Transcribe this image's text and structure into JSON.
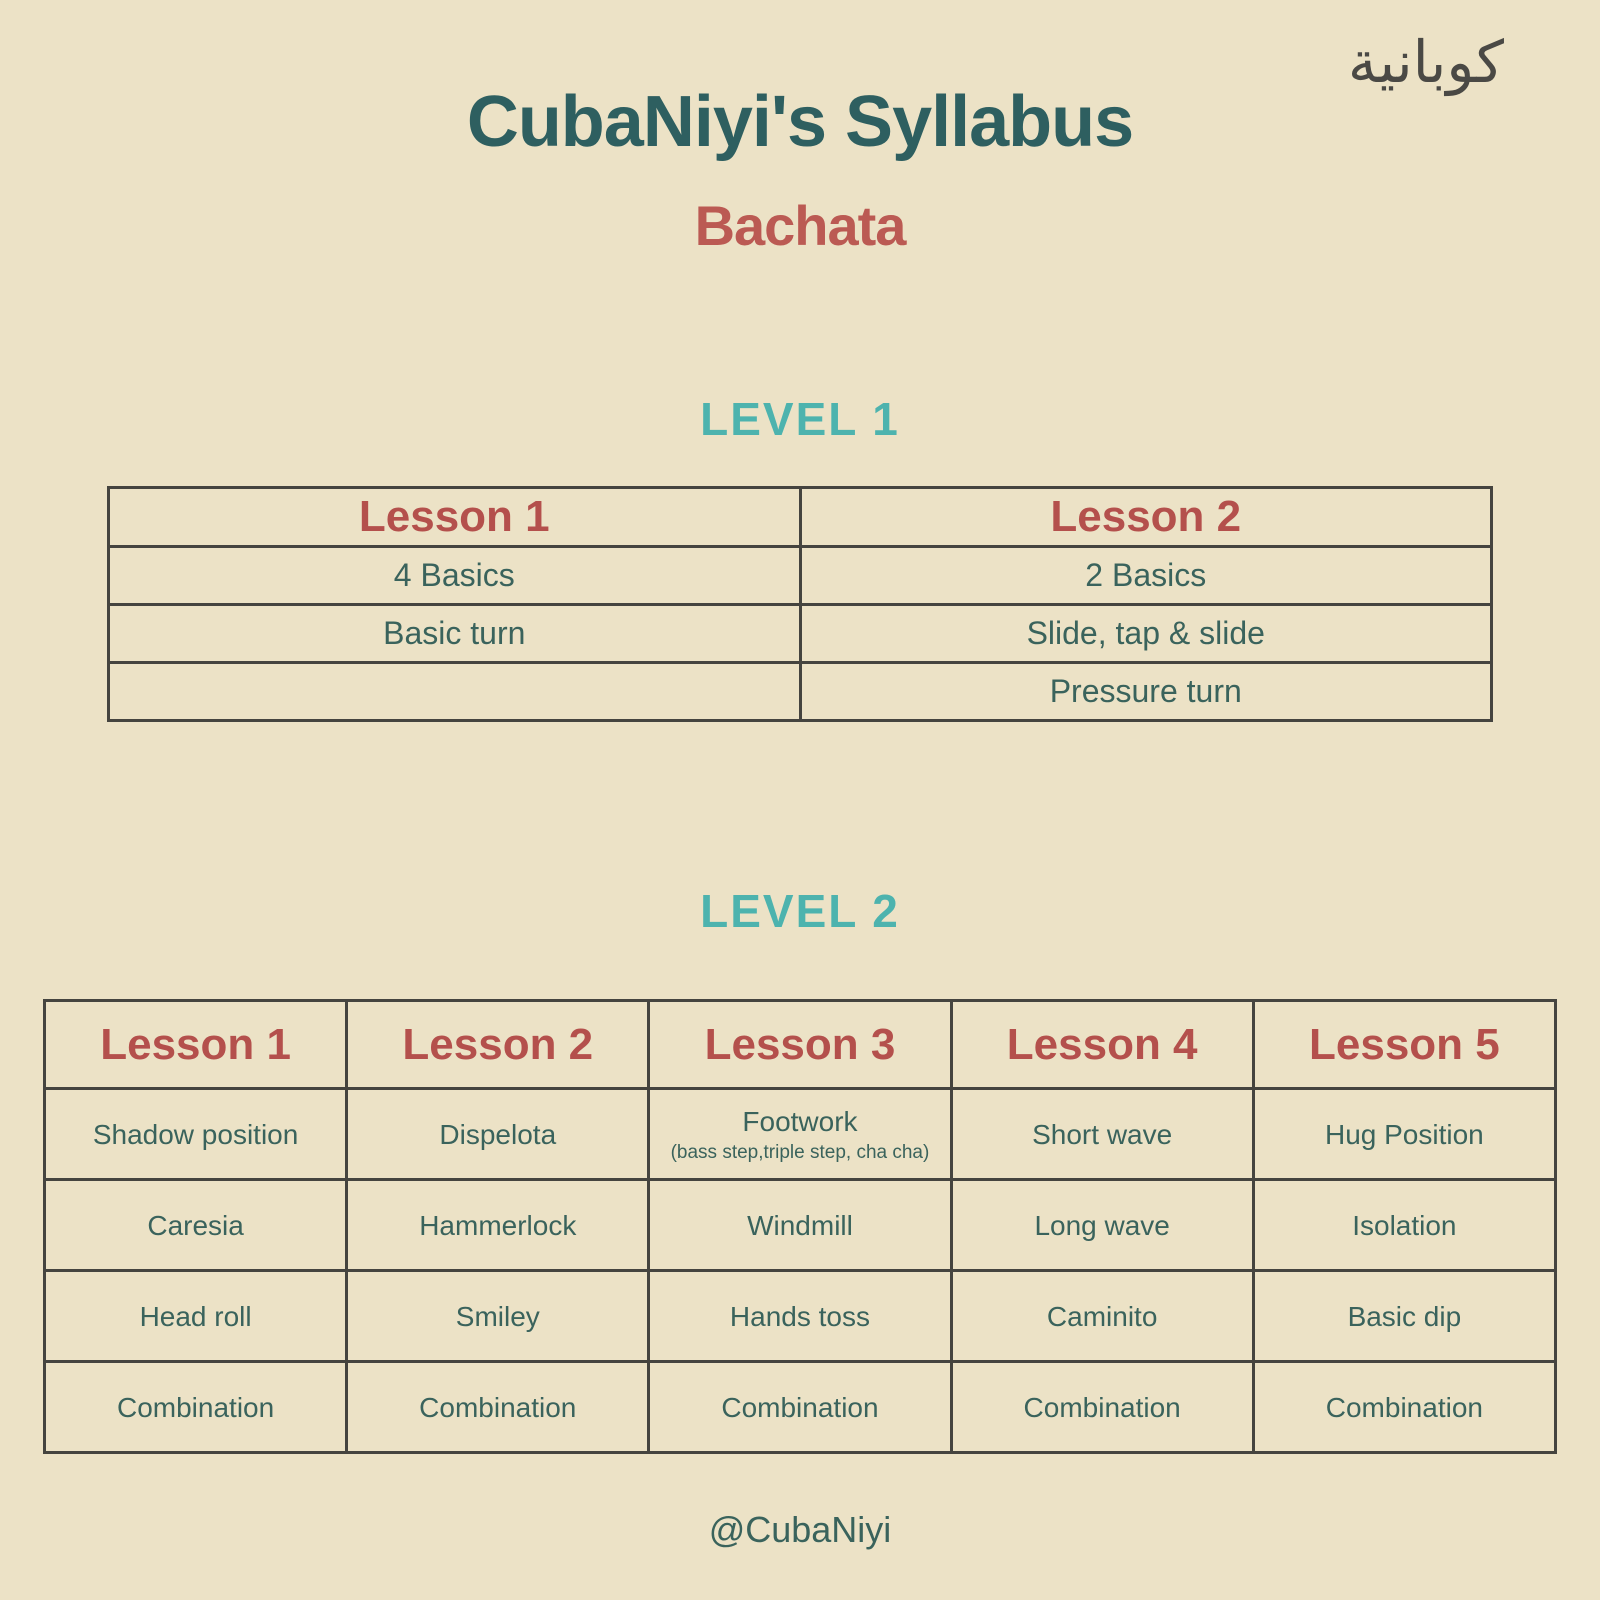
{
  "theme": {
    "bg": "#ece2c6",
    "title-color": "#2e5f60",
    "subtitle-color": "#bb5a53",
    "heading-teal": "#4db3ae",
    "lesson-red": "#b4504c",
    "cell-teal": "#3a635c",
    "table-border": "#45443f",
    "logo-color": "#4a4945"
  },
  "header": {
    "logo_text": "كوبانية",
    "title": "CubaNiyi's Syllabus",
    "subtitle": "Bachata"
  },
  "level1": {
    "heading": "LEVEL 1",
    "columns": [
      "Lesson 1",
      "Lesson 2"
    ],
    "rows": [
      [
        "4 Basics",
        "2 Basics"
      ],
      [
        "Basic turn",
        "Slide, tap & slide"
      ],
      [
        "",
        "Pressure turn"
      ]
    ]
  },
  "level2": {
    "heading": "LEVEL 2",
    "columns": [
      "Lesson 1",
      "Lesson 2",
      "Lesson 3",
      "Lesson 4",
      "Lesson 5"
    ],
    "rows": [
      [
        "Shadow position",
        "Dispelota",
        {
          "main": "Footwork",
          "sub": "(bass step,triple step, cha cha)"
        },
        "Short wave",
        "Hug Position"
      ],
      [
        "Caresia",
        "Hammerlock",
        "Windmill",
        "Long wave",
        "Isolation"
      ],
      [
        "Head roll",
        "Smiley",
        "Hands toss",
        "Caminito",
        "Basic dip"
      ],
      [
        "Combination",
        "Combination",
        "Combination",
        "Combination",
        "Combination"
      ]
    ]
  },
  "footer": {
    "handle": "@CubaNiyi"
  }
}
